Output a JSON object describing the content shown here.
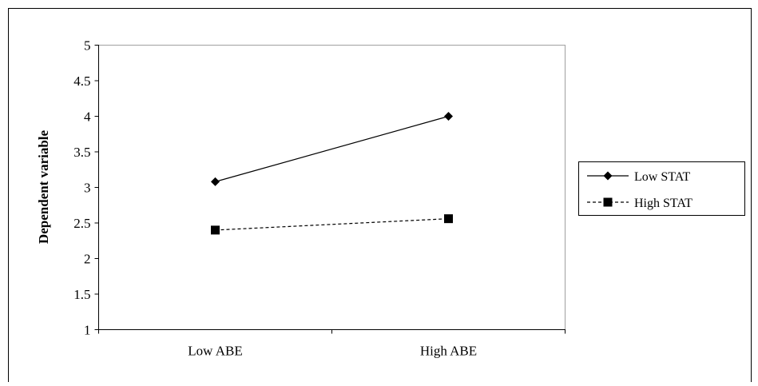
{
  "chart_data": {
    "type": "line",
    "title": "",
    "xlabel": "",
    "ylabel": "Dependent variable",
    "categories": [
      "Low ABE",
      "High ABE"
    ],
    "ylim": [
      1,
      5
    ],
    "yticks": [
      "1",
      "1.5",
      "2",
      "2.5",
      "3",
      "3.5",
      "4",
      "4.5",
      "5"
    ],
    "grid": false,
    "legend_position": "right",
    "series": [
      {
        "name": "Low STAT",
        "values": [
          3.08,
          4.0
        ],
        "line_style": "solid",
        "marker": "diamond",
        "color": "#000000"
      },
      {
        "name": "High STAT",
        "values": [
          2.4,
          2.56
        ],
        "line_style": "dashed",
        "marker": "square",
        "color": "#000000"
      }
    ]
  }
}
